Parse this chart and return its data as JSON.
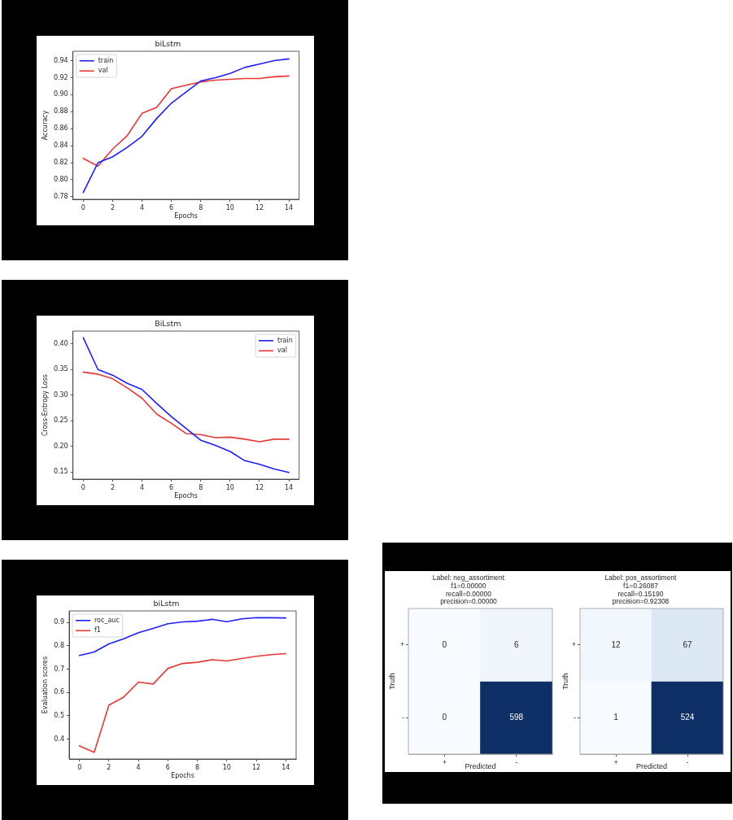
{
  "chart_data": [
    {
      "type": "line",
      "title": "biLstm",
      "xlabel": "Epochs",
      "ylabel": "Accuracy",
      "x": [
        0,
        1,
        2,
        3,
        4,
        5,
        6,
        7,
        8,
        9,
        10,
        11,
        12,
        13,
        14
      ],
      "series": [
        {
          "name": "train",
          "color": "#1f1ff5",
          "values": [
            0.785,
            0.82,
            0.827,
            0.838,
            0.851,
            0.872,
            0.89,
            0.903,
            0.916,
            0.92,
            0.925,
            0.932,
            0.936,
            0.94,
            0.942
          ]
        },
        {
          "name": "val",
          "color": "#e53935",
          "values": [
            0.825,
            0.816,
            0.836,
            0.852,
            0.878,
            0.885,
            0.907,
            0.911,
            0.915,
            0.917,
            0.918,
            0.919,
            0.919,
            0.921,
            0.922
          ]
        }
      ],
      "xlim": [
        -0.7,
        14.7
      ],
      "xticks": [
        0,
        2,
        4,
        6,
        8,
        10,
        12,
        14
      ],
      "ylim": [
        0.777,
        0.951
      ],
      "yticks": [
        0.78,
        {
          "value": 0.8,
          "label": "0.80"
        },
        0.82,
        0.84,
        0.86,
        0.88,
        {
          "value": 0.9,
          "label": "0.90"
        },
        0.92,
        0.94
      ],
      "legend": "top left"
    },
    {
      "type": "line",
      "title": "BiLstm",
      "xlabel": "Epochs",
      "ylabel": "Cross-Entropy Loss",
      "x": [
        0,
        1,
        2,
        3,
        4,
        5,
        6,
        7,
        8,
        9,
        10,
        11,
        12,
        13,
        14
      ],
      "series": [
        {
          "name": "train",
          "color": "#1f1ff5",
          "values": [
            0.412,
            0.35,
            0.339,
            0.323,
            0.311,
            0.284,
            0.258,
            0.235,
            0.212,
            0.202,
            0.19,
            0.172,
            0.165,
            0.156,
            0.149
          ]
        },
        {
          "name": "val",
          "color": "#e53935",
          "values": [
            0.345,
            0.341,
            0.332,
            0.314,
            0.294,
            0.263,
            0.245,
            0.225,
            0.223,
            0.217,
            0.218,
            0.214,
            0.209,
            0.214,
            0.214
          ]
        }
      ],
      "xlim": [
        -0.7,
        14.7
      ],
      "xticks": [
        0,
        2,
        4,
        6,
        8,
        10,
        12,
        14
      ],
      "ylim": [
        0.136,
        0.425
      ],
      "yticks": [
        0.15,
        {
          "value": 0.2,
          "label": "0.20"
        },
        0.25,
        {
          "value": 0.3,
          "label": "0.30"
        },
        0.35,
        {
          "value": 0.4,
          "label": "0.40"
        }
      ],
      "legend": "top right"
    },
    {
      "type": "line",
      "title": "biLstm",
      "xlabel": "Epochs",
      "ylabel": "Evaluation scores",
      "x": [
        0,
        1,
        2,
        3,
        4,
        5,
        6,
        7,
        8,
        9,
        10,
        11,
        12,
        13,
        14
      ],
      "series": [
        {
          "name": "roc_auc",
          "color": "#1f1ff5",
          "values": [
            0.758,
            0.773,
            0.808,
            0.83,
            0.856,
            0.874,
            0.894,
            0.902,
            0.905,
            0.913,
            0.903,
            0.915,
            0.92,
            0.92,
            0.919
          ]
        },
        {
          "name": "f1",
          "color": "#e53935",
          "values": [
            0.371,
            0.344,
            0.546,
            0.58,
            0.644,
            0.636,
            0.703,
            0.724,
            0.729,
            0.74,
            0.735,
            0.745,
            0.755,
            0.762,
            0.766
          ]
        }
      ],
      "xlim": [
        -0.7,
        14.7
      ],
      "xticks": [
        0,
        2,
        4,
        6,
        8,
        10,
        12,
        14
      ],
      "ylim": [
        0.315,
        0.949
      ],
      "yticks": [
        0.4,
        0.5,
        0.6,
        0.7,
        0.8,
        0.9
      ],
      "legend": "top left"
    },
    {
      "type": "heatmap",
      "title": "Label: neg_assortiment",
      "subtitle": "f1=0.00000\nrecall=0.00000\nprecision=0.00000",
      "xlabel": "Predicted",
      "ylabel": "Truth",
      "categories": [
        "+",
        "-"
      ],
      "y_categories": [
        "+",
        "-"
      ],
      "cells": [
        [
          0,
          6
        ],
        [
          0,
          598
        ]
      ],
      "colors": [
        [
          "#f7fbff",
          "#f1f6fc"
        ],
        [
          "#f7fbff",
          "#0e2f66"
        ]
      ],
      "data_labels": true
    },
    {
      "type": "heatmap",
      "title": "Label: pos_assortiment",
      "subtitle": "f1=0.26087\nrecall=0.15190\nprecision=0.92308",
      "xlabel": "Predicted",
      "ylabel": "Truth",
      "categories": [
        "+",
        "-"
      ],
      "y_categories": [
        "+",
        "-"
      ],
      "cells": [
        [
          12,
          67
        ],
        [
          1,
          524
        ]
      ],
      "colors": [
        [
          "#f2f7fd",
          "#dce8f4"
        ],
        [
          "#f7fbff",
          "#0e2f66"
        ]
      ],
      "data_labels": true
    }
  ]
}
